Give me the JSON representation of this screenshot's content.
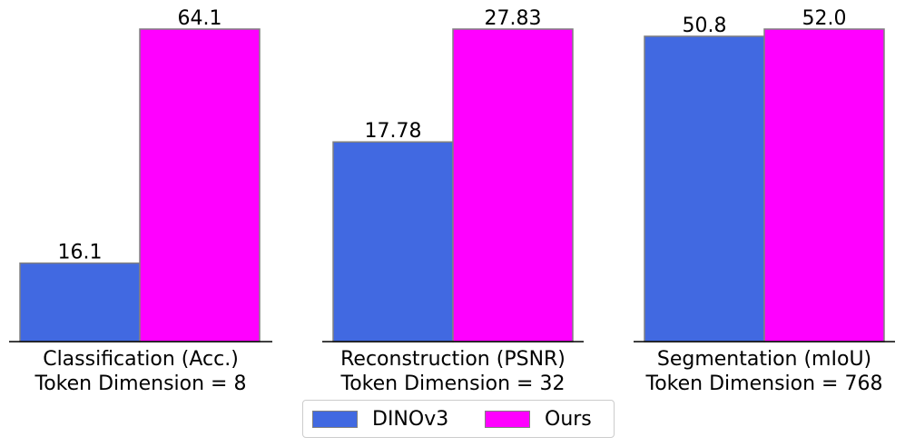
{
  "chart_data": [
    {
      "type": "bar",
      "panel": "classification",
      "categories": [
        "DINOv3",
        "Ours"
      ],
      "values": [
        16.1,
        64.1
      ],
      "value_labels": [
        "16.1",
        "64.1"
      ],
      "xlabel_line1": "Classification (Acc.)",
      "xlabel_line2": "Token Dimension = 8",
      "ylim": [
        0,
        64.1
      ]
    },
    {
      "type": "bar",
      "panel": "reconstruction",
      "categories": [
        "DINOv3",
        "Ours"
      ],
      "values": [
        17.78,
        27.83
      ],
      "value_labels": [
        "17.78",
        "27.83"
      ],
      "xlabel_line1": "Reconstruction (PSNR)",
      "xlabel_line2": "Token Dimension = 32",
      "ylim": [
        0,
        27.83
      ]
    },
    {
      "type": "bar",
      "panel": "segmentation",
      "categories": [
        "DINOv3",
        "Ours"
      ],
      "values": [
        50.8,
        52.0
      ],
      "value_labels": [
        "50.8",
        "52.0"
      ],
      "xlabel_line1": "Segmentation (mIoU)",
      "xlabel_line2": "Token Dimension = 768",
      "ylim": [
        0,
        52.0
      ]
    }
  ],
  "legend": {
    "items": [
      {
        "label": "DINOv3",
        "color": "#4169E1"
      },
      {
        "label": "Ours",
        "color": "#FF00FF"
      }
    ],
    "placement": "bottom-center"
  },
  "colors": {
    "dinov3": "#4169E1",
    "ours": "#FF00FF",
    "bar_edge": "#808080",
    "axis": "#000000"
  }
}
